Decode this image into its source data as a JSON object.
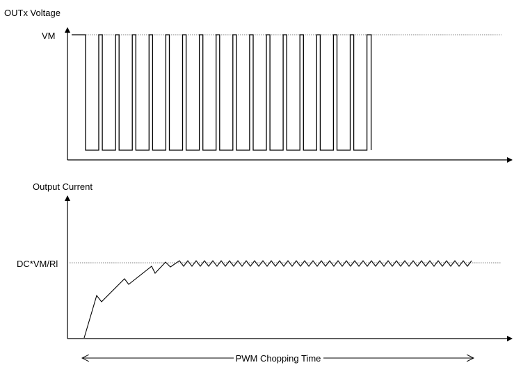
{
  "voltage_plot": {
    "y_axis_label": "OUTx Voltage",
    "level_label": "VM",
    "pulse_count": 17
  },
  "current_plot": {
    "y_axis_label": "Output Current",
    "level_label": "DC*VM/Rl"
  },
  "time_span": {
    "label": "PWM Chopping Time"
  },
  "colors": {
    "line": "#000000",
    "dotted_reference": "#808080",
    "background": "#ffffff"
  }
}
